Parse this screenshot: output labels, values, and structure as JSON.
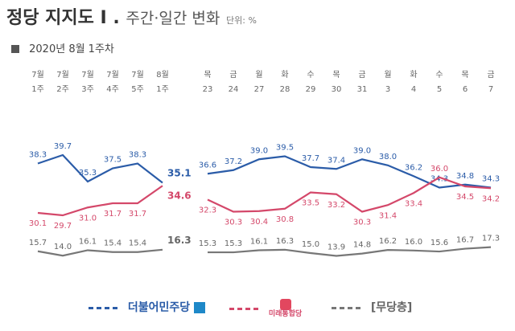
{
  "header": {
    "title": "정당 지지도 I .",
    "subtitle": "주간·일간 변화",
    "unit": "단위: %",
    "date_label": "2020년 8월 1주차"
  },
  "colors": {
    "dem": "#2b5ca8",
    "unified": "#d4486a",
    "none": "#777777"
  },
  "chart_data": [
    {
      "type": "line",
      "categories": [
        "7월 1주",
        "7월 2주",
        "7월 3주",
        "7월 4주",
        "7월 5주",
        "8월 1주"
      ],
      "series": [
        {
          "name": "더불어민주당",
          "values": [
            38.3,
            39.7,
            35.3,
            37.5,
            38.3,
            35.1
          ]
        },
        {
          "name": "미래통합당",
          "values": [
            30.1,
            29.7,
            31.0,
            31.7,
            31.7,
            34.6
          ]
        },
        {
          "name": "무당층",
          "values": [
            15.7,
            14.0,
            16.1,
            15.4,
            15.4,
            16.3
          ]
        }
      ]
    },
    {
      "type": "line",
      "categories": [
        "목 23",
        "금 24",
        "월 27",
        "화 28",
        "수 29",
        "목 30",
        "금 31",
        "월 3",
        "화 4",
        "수 5",
        "목 6",
        "금 7"
      ],
      "series": [
        {
          "name": "더불어민주당",
          "values": [
            36.6,
            37.2,
            39.0,
            39.5,
            37.7,
            37.4,
            39.0,
            38.0,
            36.2,
            34.3,
            34.8,
            34.3
          ]
        },
        {
          "name": "미래통합당",
          "values": [
            32.3,
            30.3,
            30.4,
            30.8,
            33.5,
            33.2,
            30.3,
            31.4,
            33.4,
            36.0,
            34.5,
            34.2
          ]
        },
        {
          "name": "무당층",
          "values": [
            15.3,
            15.3,
            16.1,
            16.3,
            15.0,
            13.9,
            14.8,
            16.2,
            16.0,
            15.6,
            16.7,
            17.3
          ]
        }
      ]
    }
  ],
  "legend": {
    "dem": "더불어민주당",
    "unified_logo": "미래통합당",
    "none": "[무당층]"
  }
}
